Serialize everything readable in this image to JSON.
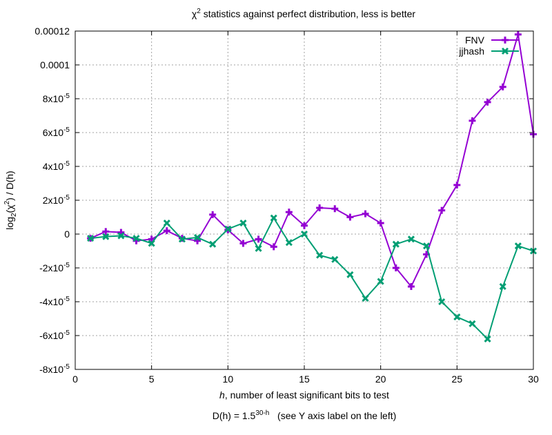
{
  "chart_data": {
    "type": "line",
    "title_main": "χ",
    "title_sup": "2",
    "title_rest": " statistics against perfect distribution, less is better",
    "xlabel_italic": "h",
    "xlabel_rest": ", number of least significant bits to test",
    "ylabel": {
      "a": "log",
      "sub": "2",
      "b": "(χ",
      "sup": "2",
      "c": ") / D(h)"
    },
    "footnote": {
      "a": "D(h) = 1.5",
      "sup": "30-h",
      "b": "   (see Y axis label on the left)"
    },
    "xlim": [
      0,
      30
    ],
    "ylim": [
      -8e-05,
      0.00012
    ],
    "x_ticks": [
      0,
      5,
      10,
      15,
      20,
      25,
      30
    ],
    "y_ticks": [
      {
        "value": -8e-05,
        "mant": "-8x10",
        "exp": "-5"
      },
      {
        "value": -6e-05,
        "mant": "-6x10",
        "exp": "-5"
      },
      {
        "value": -4e-05,
        "mant": "-4x10",
        "exp": "-5"
      },
      {
        "value": -2e-05,
        "mant": "-2x10",
        "exp": "-5"
      },
      {
        "value": 0,
        "mant": "0",
        "exp": ""
      },
      {
        "value": 2e-05,
        "mant": "2x10",
        "exp": "-5"
      },
      {
        "value": 4e-05,
        "mant": "4x10",
        "exp": "-5"
      },
      {
        "value": 6e-05,
        "mant": "6x10",
        "exp": "-5"
      },
      {
        "value": 8e-05,
        "mant": "8x10",
        "exp": "-5"
      },
      {
        "value": 0.0001,
        "mant": "0.0001",
        "exp": ""
      },
      {
        "value": 0.00012,
        "mant": "0.00012",
        "exp": ""
      }
    ],
    "grid": true,
    "legend_position": "top-right",
    "x": [
      1,
      2,
      3,
      4,
      5,
      6,
      7,
      8,
      9,
      10,
      11,
      12,
      13,
      14,
      15,
      16,
      17,
      18,
      19,
      20,
      21,
      22,
      23,
      24,
      25,
      26,
      27,
      28,
      29,
      30
    ],
    "series": [
      {
        "name": "FNV",
        "color": "#9400d3",
        "marker": "plus",
        "values": [
          -2.5e-06,
          1.5e-06,
          1e-06,
          -4e-06,
          -3e-06,
          2e-06,
          -2.5e-06,
          -4e-06,
          1.15e-05,
          2.5e-06,
          -5.5e-06,
          -3e-06,
          -7.5e-06,
          1.3e-05,
          5e-06,
          1.55e-05,
          1.5e-05,
          1e-05,
          1.2e-05,
          6.5e-06,
          -2e-05,
          -3.1e-05,
          -1.2e-05,
          1.4e-05,
          2.9e-05,
          6.7e-05,
          7.8e-05,
          8.7e-05,
          0.000118,
          5.9e-05
        ]
      },
      {
        "name": "jjhash",
        "color": "#009e73",
        "marker": "cross",
        "values": [
          -2.5e-06,
          -1.5e-06,
          -1e-06,
          -2.5e-06,
          -5.5e-06,
          6.5e-06,
          -3e-06,
          -2e-06,
          -6e-06,
          3e-06,
          6.5e-06,
          -8.5e-06,
          9.5e-06,
          -5e-06,
          0.0,
          -1.25e-05,
          -1.5e-05,
          -2.4e-05,
          -3.8e-05,
          -2.8e-05,
          -6e-06,
          -3e-06,
          -7e-06,
          -4e-05,
          -4.9e-05,
          -5.3e-05,
          -6.2e-05,
          -3.1e-05,
          -7e-06,
          -1e-05
        ]
      }
    ]
  }
}
